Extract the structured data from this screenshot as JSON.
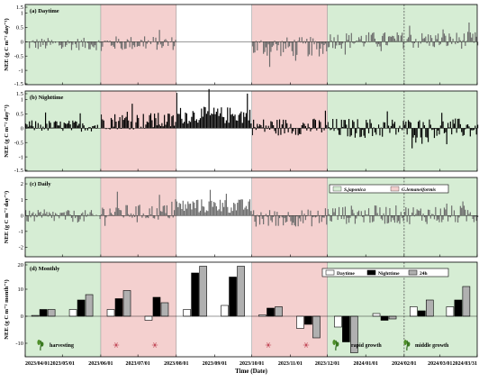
{
  "figure": {
    "x_axis_title": "Time (Date)",
    "date_ticks": [
      "2023/04/01",
      "2023/05/01",
      "2023/06/01",
      "2023/07/01",
      "2023/08/01",
      "2023/09/01",
      "2023/10/01",
      "2023/11/01",
      "2023/12/01",
      "2024/01/01",
      "2024/02/01",
      "2024/03/01",
      "2024/03/31"
    ],
    "colors": {
      "green_period": "#d6edd4",
      "pink_period": "#f4d0cf",
      "white_period": "#ffffff",
      "bar_dark": "#000000",
      "bar_gray": "#6b6b6b",
      "bar_light_gray": "#b0b0b0",
      "dashed_line": "#555555"
    },
    "period_bands": [
      {
        "name": "S.japonica",
        "start": "2023/04/01",
        "end": "2023/06/01",
        "color_key": "green_period"
      },
      {
        "name": "G.lemaneiformis",
        "start": "2023/06/01",
        "end": "2023/08/01",
        "color_key": "pink_period"
      },
      {
        "name": "none",
        "start": "2023/08/01",
        "end": "2023/10/01",
        "color_key": "white_period"
      },
      {
        "name": "G.lemaneiformis",
        "start": "2023/10/01",
        "end": "2023/12/01",
        "color_key": "pink_period"
      },
      {
        "name": "S.japonica",
        "start": "2023/12/01",
        "end": "2024/03/31",
        "color_key": "green_period"
      }
    ],
    "dashed_date": "2024/02/01",
    "stage_labels": {
      "harvesting": "harvesting",
      "rapid_growth": "rapid growth",
      "middle_growth": "middle growth"
    },
    "stage_icons": [
      "kelp-sprout-icon",
      "red-algae-icon",
      "red-algae-icon",
      "red-algae-icon",
      "red-algae-icon",
      "kelp-sprout-icon",
      "kelp-sprout-icon",
      "kelp-sprout-icon"
    ]
  },
  "chart_data": [
    {
      "type": "bar",
      "panel": "(a) Daytime",
      "ylabel": "NEE (g C m⁻² day⁻¹)",
      "ylim": [
        -1.5,
        1.3
      ],
      "yticks": [
        "1.5",
        "1",
        "0.5",
        "0",
        "-0.5",
        "-1",
        "-1.5"
      ],
      "bar_color_key": "bar_gray",
      "series_rule": "daily values, one bar per day from 2023/04/01 to 2024/03/31",
      "segments": [
        {
          "start": "2023/04/01",
          "end": "2023/06/01",
          "mean": -0.08,
          "amp": 0.22
        },
        {
          "start": "2023/06/01",
          "end": "2023/08/01",
          "mean": -0.05,
          "amp": 0.25
        },
        {
          "start": "2023/08/01",
          "end": "2023/10/01",
          "mean": 0.0,
          "amp": 0.0
        },
        {
          "start": "2023/10/01",
          "end": "2023/12/01",
          "mean": -0.18,
          "amp": 0.35
        },
        {
          "start": "2023/12/01",
          "end": "2024/03/31",
          "mean": 0.05,
          "amp": 0.3
        }
      ]
    },
    {
      "type": "bar",
      "panel": "(b) Nighttime",
      "ylabel": "NEE (g C m⁻² day⁻¹)",
      "ylim": [
        -1.5,
        1.3
      ],
      "yticks": [
        "1.5",
        "1",
        "0.5",
        "0",
        "-0.5",
        "-1",
        "-1.5"
      ],
      "bar_color_key": "bar_dark",
      "series_rule": "daily values, one bar per day from 2023/04/01 to 2024/03/31",
      "segments": [
        {
          "start": "2023/04/01",
          "end": "2023/06/01",
          "mean": 0.08,
          "amp": 0.2
        },
        {
          "start": "2023/06/01",
          "end": "2023/08/01",
          "mean": 0.25,
          "amp": 0.3
        },
        {
          "start": "2023/08/01",
          "end": "2023/10/01",
          "mean": 0.45,
          "amp": 0.3
        },
        {
          "start": "2023/10/01",
          "end": "2023/12/01",
          "mean": 0.05,
          "amp": 0.3
        },
        {
          "start": "2023/12/01",
          "end": "2024/03/31",
          "mean": 0.0,
          "amp": 0.35
        }
      ]
    },
    {
      "type": "bar",
      "panel": "(c) Daily",
      "ylabel": "NEE (g C m⁻² day⁻¹)",
      "ylim": [
        -2.6,
        2.4
      ],
      "yticks": [
        "2",
        "1",
        "0",
        "-1",
        "-2"
      ],
      "bar_color_key": "bar_gray",
      "legend": [
        "S.japonica",
        "G.lemaneiformis"
      ],
      "series_rule": "daily values, one bar per day from 2023/04/01 to 2024/03/31",
      "segments": [
        {
          "start": "2023/04/01",
          "end": "2023/06/01",
          "mean": -0.05,
          "amp": 0.4
        },
        {
          "start": "2023/06/01",
          "end": "2023/08/01",
          "mean": 0.2,
          "amp": 0.5
        },
        {
          "start": "2023/08/01",
          "end": "2023/10/01",
          "mean": 0.6,
          "amp": 0.45
        },
        {
          "start": "2023/10/01",
          "end": "2023/12/01",
          "mean": -0.15,
          "amp": 0.55
        },
        {
          "start": "2023/12/01",
          "end": "2024/03/31",
          "mean": 0.05,
          "amp": 0.6
        }
      ]
    },
    {
      "type": "bar",
      "panel": "(d) Monthly",
      "ylabel": "NEE (g C m⁻² month⁻¹)",
      "ylim": [
        -15,
        20
      ],
      "yticks": [
        "20",
        "10",
        "0",
        "-10"
      ],
      "legend": [
        "Daytime",
        "Nighttime",
        "24h"
      ],
      "series_color_keys": [
        "white_period",
        "bar_dark",
        "bar_light_gray"
      ],
      "categories": [
        "2023-04",
        "2023-05",
        "2023-06",
        "2023-07",
        "2023-08",
        "2023-09",
        "2023-10",
        "2023-11",
        "2023-12",
        "2024-01",
        "2024-02",
        "2024-03"
      ],
      "series": [
        {
          "name": "Daytime",
          "values": [
            0.3,
            2.5,
            2.5,
            -1.5,
            2.5,
            4.0,
            0.5,
            -4.5,
            -4.0,
            1.0,
            3.5,
            3.5
          ]
        },
        {
          "name": "Nighttime",
          "values": [
            2.5,
            6.0,
            6.5,
            7.0,
            16.0,
            14.5,
            3.0,
            -3.0,
            -9.5,
            -1.5,
            2.0,
            6.0
          ]
        },
        {
          "name": "24h",
          "values": [
            2.5,
            8.0,
            9.5,
            5.0,
            18.5,
            18.5,
            3.5,
            -8.0,
            -13.5,
            -1.0,
            6.0,
            11.0
          ]
        }
      ]
    }
  ]
}
